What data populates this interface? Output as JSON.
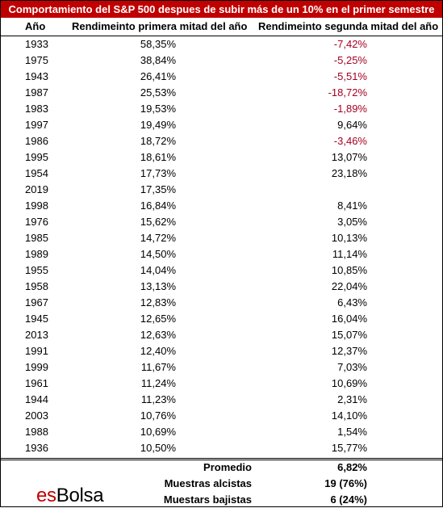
{
  "title": "Comportamiento del S&P 500 despues de subir más de un 10% en el primer semestre",
  "headers": {
    "year": "Año",
    "first_half": "Rendimeinto primera mitad del año",
    "second_half": "Rendimeinto segunda mitad del año"
  },
  "rows": [
    {
      "year": "1933",
      "first": "58,35%",
      "second": "-7,42%",
      "negative": true
    },
    {
      "year": "1975",
      "first": "38,84%",
      "second": "-5,25%",
      "negative": true
    },
    {
      "year": "1943",
      "first": "26,41%",
      "second": "-5,51%",
      "negative": true
    },
    {
      "year": "1987",
      "first": "25,53%",
      "second": "-18,72%",
      "negative": true
    },
    {
      "year": "1983",
      "first": "19,53%",
      "second": "-1,89%",
      "negative": true
    },
    {
      "year": "1997",
      "first": "19,49%",
      "second": "9,64%",
      "negative": false
    },
    {
      "year": "1986",
      "first": "18,72%",
      "second": "-3,46%",
      "negative": true
    },
    {
      "year": "1995",
      "first": "18,61%",
      "second": "13,07%",
      "negative": false
    },
    {
      "year": "1954",
      "first": "17,73%",
      "second": "23,18%",
      "negative": false
    },
    {
      "year": "2019",
      "first": "17,35%",
      "second": "",
      "negative": false
    },
    {
      "year": "1998",
      "first": "16,84%",
      "second": "8,41%",
      "negative": false
    },
    {
      "year": "1976",
      "first": "15,62%",
      "second": "3,05%",
      "negative": false
    },
    {
      "year": "1985",
      "first": "14,72%",
      "second": "10,13%",
      "negative": false
    },
    {
      "year": "1989",
      "first": "14,50%",
      "second": "11,14%",
      "negative": false
    },
    {
      "year": "1955",
      "first": "14,04%",
      "second": "10,85%",
      "negative": false
    },
    {
      "year": "1958",
      "first": "13,13%",
      "second": "22,04%",
      "negative": false
    },
    {
      "year": "1967",
      "first": "12,83%",
      "second": "6,43%",
      "negative": false
    },
    {
      "year": "1945",
      "first": "12,65%",
      "second": "16,04%",
      "negative": false
    },
    {
      "year": "2013",
      "first": "12,63%",
      "second": "15,07%",
      "negative": false
    },
    {
      "year": "1991",
      "first": "12,40%",
      "second": "12,37%",
      "negative": false
    },
    {
      "year": "1999",
      "first": "11,67%",
      "second": "7,03%",
      "negative": false
    },
    {
      "year": "1961",
      "first": "11,24%",
      "second": "10,69%",
      "negative": false
    },
    {
      "year": "1944",
      "first": "11,23%",
      "second": "2,31%",
      "negative": false
    },
    {
      "year": "2003",
      "first": "10,76%",
      "second": "14,10%",
      "negative": false
    },
    {
      "year": "1988",
      "first": "10,69%",
      "second": "1,54%",
      "negative": false
    },
    {
      "year": "1936",
      "first": "10,50%",
      "second": "15,77%",
      "negative": false
    }
  ],
  "summary": [
    {
      "label": "Promedio",
      "value": "6,82%"
    },
    {
      "label": "Muestras alcistas",
      "value": "19 (76%)"
    },
    {
      "label": "Muestars bajistas",
      "value": "6 (24%)"
    }
  ],
  "logo": {
    "prefix": "es",
    "suffix": "Bolsa"
  },
  "colors": {
    "title_bg": "#c00000",
    "negative": "#a50021",
    "brand": "#c00000"
  }
}
